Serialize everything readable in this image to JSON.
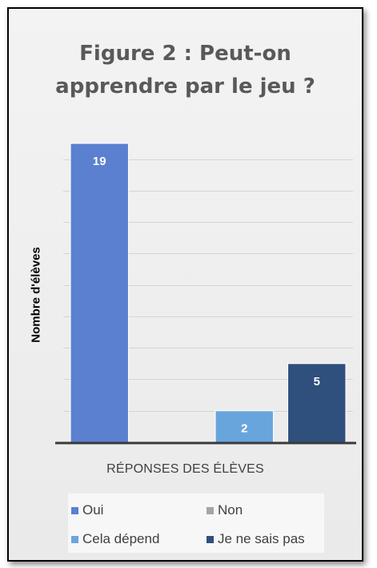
{
  "chart_data": {
    "type": "bar",
    "title_lines": [
      "Figure 2 : Peut-on",
      "apprendre par le jeu ?"
    ],
    "xlabel": "RÉPONSES DES ÉLÈVES",
    "ylabel": "Nombre d'élèves",
    "ylim": [
      0,
      19
    ],
    "grid": true,
    "legend_position": "bottom",
    "series": [
      {
        "name": "Oui",
        "value": 19,
        "color": "#5b80d0"
      },
      {
        "name": "Non",
        "value": 0,
        "color": "#a5a5a5"
      },
      {
        "name": "Cela dépend",
        "value": 2,
        "color": "#69a5dd"
      },
      {
        "name": "Je ne sais pas",
        "value": 5,
        "color": "#2f4f7c"
      }
    ]
  }
}
